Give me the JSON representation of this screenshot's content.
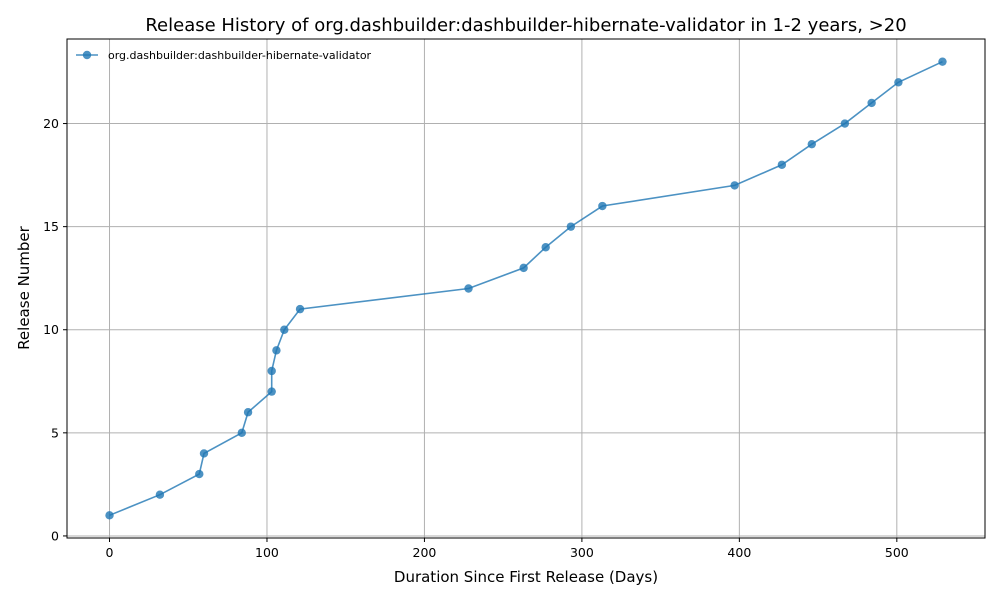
{
  "chart_data": {
    "type": "line",
    "title": "Release History of org.dashbuilder:dashbuilder-hibernate-validator in 1-2 years, >20",
    "xlabel": "Duration Since First Release (Days)",
    "ylabel": "Release Number",
    "xlim": [
      -27,
      556
    ],
    "ylim": [
      -0.1,
      24.1
    ],
    "xticks": [
      0,
      100,
      200,
      300,
      400,
      500
    ],
    "yticks": [
      0,
      5,
      10,
      15,
      20
    ],
    "grid": true,
    "legend_position": "top-left",
    "series": [
      {
        "name": "org.dashbuilder:dashbuilder-hibernate-validator",
        "color": "#1f77b4",
        "marker": "circle",
        "x": [
          0,
          32,
          57,
          60,
          84,
          88,
          103,
          103,
          106,
          111,
          121,
          228,
          263,
          277,
          293,
          313,
          397,
          427,
          446,
          467,
          484,
          501,
          529
        ],
        "y": [
          1,
          2,
          3,
          4,
          5,
          6,
          7,
          8,
          9,
          10,
          11,
          12,
          13,
          14,
          15,
          16,
          17,
          18,
          19,
          20,
          21,
          22,
          23
        ]
      }
    ]
  }
}
